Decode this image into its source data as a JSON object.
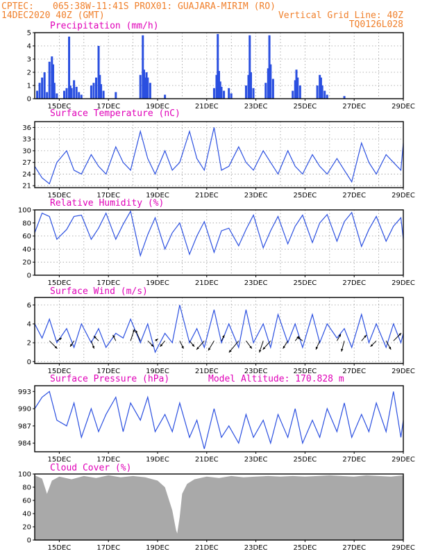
{
  "header": {
    "line1_left": "CPTEC:",
    "line1_center": "065:38W-11:41S   PROX01: GUAJARA-MIRIM (RO)",
    "line2_left": "14DEC2020 40Z (GMT)",
    "line2_right": "Vertical Grid Line: 40Z",
    "line3_right": "TQ0126L028"
  },
  "x_axis_labels": [
    "15DEC",
    "17DEC",
    "19DEC",
    "21DEC",
    "23DEC",
    "25DEC",
    "27DEC",
    "29DEC"
  ],
  "colors": {
    "series": "#2a4fe0",
    "bars": "#2a4fe0",
    "cloud": "#a9a9a9",
    "title": "#e000b8",
    "header": "#f07f2a"
  },
  "chart_data": [
    {
      "id": "precipitation",
      "type": "bar",
      "title": "Precipitation (mm/h)",
      "yticks": [
        0,
        1,
        2,
        3,
        4,
        5
      ],
      "ylim": [
        0,
        5
      ],
      "grid": true,
      "xlim": [
        14.0,
        29.0
      ],
      "x": [
        14.1,
        14.2,
        14.3,
        14.4,
        14.5,
        14.6,
        14.7,
        14.75,
        14.8,
        14.9,
        15.2,
        15.3,
        15.4,
        15.45,
        15.5,
        15.6,
        15.7,
        15.8,
        15.9,
        16.3,
        16.4,
        16.5,
        16.6,
        16.65,
        16.7,
        16.8,
        17.3,
        18.3,
        18.4,
        18.45,
        18.5,
        18.55,
        18.6,
        18.7,
        19.3,
        21.3,
        21.4,
        21.45,
        21.5,
        21.55,
        21.6,
        21.7,
        21.9,
        22.0,
        22.6,
        22.7,
        22.75,
        22.8,
        22.9,
        23.4,
        23.5,
        23.55,
        23.6,
        23.7,
        24.5,
        24.6,
        24.65,
        24.7,
        24.8,
        25.5,
        25.6,
        25.65,
        25.7,
        25.8,
        25.9,
        26.6
      ],
      "values": [
        0.6,
        1.2,
        1.6,
        2.0,
        0.5,
        2.8,
        3.2,
        2.6,
        1.2,
        0.4,
        0.6,
        0.8,
        4.7,
        1.0,
        0.8,
        1.4,
        0.9,
        0.5,
        0.3,
        1.0,
        1.2,
        1.6,
        4.0,
        1.8,
        1.1,
        0.6,
        0.5,
        1.8,
        4.8,
        2.2,
        1.6,
        2.0,
        1.6,
        1.2,
        0.3,
        0.8,
        1.8,
        4.9,
        2.1,
        1.3,
        0.9,
        0.6,
        0.8,
        0.4,
        1.0,
        1.8,
        4.8,
        2.0,
        0.8,
        1.2,
        2.3,
        4.8,
        2.6,
        1.5,
        0.6,
        1.4,
        2.2,
        1.6,
        1.0,
        1.0,
        1.8,
        1.6,
        1.0,
        0.6,
        0.3,
        0.2
      ]
    },
    {
      "id": "temperature",
      "type": "line",
      "title": "Surface Temperature (nC)",
      "yticks": [
        21,
        24,
        27,
        30,
        33,
        36
      ],
      "ylim": [
        20.5,
        37.5
      ],
      "grid": true,
      "xlim": [
        14.0,
        29.0
      ],
      "x": [
        14.0,
        14.3,
        14.6,
        14.9,
        15.3,
        15.6,
        15.9,
        16.3,
        16.6,
        16.9,
        17.3,
        17.6,
        17.9,
        18.3,
        18.6,
        18.9,
        19.3,
        19.6,
        19.9,
        20.3,
        20.6,
        20.9,
        21.3,
        21.6,
        21.9,
        22.3,
        22.6,
        22.9,
        23.3,
        23.6,
        23.9,
        24.3,
        24.6,
        24.9,
        25.3,
        25.6,
        25.9,
        26.3,
        26.6,
        26.9,
        27.3,
        27.6,
        27.9,
        28.3,
        28.6,
        28.9,
        29.0
      ],
      "values": [
        26,
        23,
        21.5,
        27,
        30,
        25,
        24,
        29,
        26,
        24,
        31,
        27,
        25,
        35,
        28,
        24,
        30,
        25,
        27,
        35,
        28,
        25,
        36,
        25,
        26,
        31,
        27,
        25,
        30,
        27,
        24,
        30,
        26,
        24,
        29,
        26,
        24,
        28,
        25,
        22,
        32,
        27,
        24,
        29,
        27,
        25,
        32
      ]
    },
    {
      "id": "humidity",
      "type": "line",
      "title": "Relative Humidity (%)",
      "yticks": [
        0,
        20,
        40,
        60,
        80,
        100
      ],
      "ylim": [
        0,
        100
      ],
      "grid": true,
      "xlim": [
        14.0,
        29.0
      ],
      "x": [
        14.0,
        14.3,
        14.6,
        14.9,
        15.3,
        15.6,
        15.9,
        16.3,
        16.6,
        16.9,
        17.3,
        17.6,
        17.9,
        18.3,
        18.6,
        18.9,
        19.3,
        19.6,
        19.9,
        20.3,
        20.6,
        20.9,
        21.3,
        21.6,
        21.9,
        22.3,
        22.6,
        22.9,
        23.3,
        23.6,
        23.9,
        24.3,
        24.6,
        24.9,
        25.3,
        25.6,
        25.9,
        26.3,
        26.6,
        26.9,
        27.3,
        27.6,
        27.9,
        28.3,
        28.6,
        28.9,
        29.0
      ],
      "values": [
        65,
        95,
        90,
        55,
        70,
        90,
        92,
        55,
        72,
        95,
        55,
        78,
        98,
        30,
        62,
        88,
        40,
        65,
        80,
        32,
        60,
        82,
        35,
        68,
        72,
        45,
        70,
        92,
        42,
        68,
        90,
        48,
        75,
        92,
        50,
        80,
        93,
        52,
        82,
        96,
        44,
        70,
        90,
        52,
        75,
        88,
        55
      ]
    },
    {
      "id": "wind",
      "type": "line",
      "title": "Surface Wind (m/s)",
      "yticks": [
        0,
        2,
        4,
        6
      ],
      "ylim": [
        -0.2,
        6.8
      ],
      "grid": true,
      "xlim": [
        14.0,
        29.0
      ],
      "x": [
        14.0,
        14.3,
        14.6,
        14.9,
        15.3,
        15.6,
        15.9,
        16.3,
        16.6,
        16.9,
        17.3,
        17.6,
        17.9,
        18.3,
        18.6,
        18.9,
        19.3,
        19.6,
        19.9,
        20.3,
        20.6,
        20.9,
        21.3,
        21.6,
        21.9,
        22.3,
        22.6,
        22.9,
        23.3,
        23.6,
        23.9,
        24.3,
        24.6,
        24.9,
        25.3,
        25.6,
        25.9,
        26.3,
        26.6,
        26.9,
        27.3,
        27.6,
        27.9,
        28.3,
        28.6,
        28.9,
        29.0
      ],
      "values": [
        4,
        2.5,
        4.5,
        2,
        3.5,
        1.5,
        4,
        2,
        3.5,
        1.5,
        3,
        2.5,
        4.5,
        2,
        4,
        1,
        3,
        2,
        6,
        2,
        3.5,
        1.5,
        5.5,
        2,
        4,
        1.5,
        5.5,
        2,
        4,
        1.5,
        5,
        2,
        4,
        1.5,
        5,
        2,
        4,
        2.5,
        3.5,
        1.5,
        5,
        2,
        4,
        1.5,
        4,
        2,
        3
      ],
      "vectors": [
        {
          "x": 14.6,
          "u": 0.8,
          "v": -0.8
        },
        {
          "x": 14.9,
          "u": 0.5,
          "v": 0.3
        },
        {
          "x": 15.6,
          "u": -0.4,
          "v": -0.6
        },
        {
          "x": 16.3,
          "u": 0.3,
          "v": -0.8
        },
        {
          "x": 16.6,
          "u": -0.5,
          "v": 0.5
        },
        {
          "x": 17.3,
          "u": -0.3,
          "v": 0.6
        },
        {
          "x": 17.9,
          "u": 0.4,
          "v": 1.2
        },
        {
          "x": 18.3,
          "u": -0.5,
          "v": 1.1
        },
        {
          "x": 18.6,
          "u": 0.6,
          "v": -0.6
        },
        {
          "x": 18.9,
          "u": 0.3,
          "v": 0.2
        },
        {
          "x": 19.3,
          "u": -0.5,
          "v": -0.6
        },
        {
          "x": 19.9,
          "u": 0.4,
          "v": -0.8
        },
        {
          "x": 20.3,
          "u": 0.5,
          "v": -0.6
        },
        {
          "x": 20.9,
          "u": -0.8,
          "v": -0.9
        },
        {
          "x": 21.3,
          "u": -0.6,
          "v": -1.0
        },
        {
          "x": 21.6,
          "u": 0.3,
          "v": 0.6
        },
        {
          "x": 22.3,
          "u": -1.0,
          "v": -1.2
        },
        {
          "x": 22.6,
          "u": 0.6,
          "v": -0.8
        },
        {
          "x": 23.3,
          "u": -0.4,
          "v": -1.2
        },
        {
          "x": 23.6,
          "u": -0.8,
          "v": -0.9
        },
        {
          "x": 24.3,
          "u": -0.5,
          "v": -0.8
        },
        {
          "x": 24.6,
          "u": 0.4,
          "v": 0.5
        },
        {
          "x": 24.9,
          "u": -0.5,
          "v": 0.4
        },
        {
          "x": 25.6,
          "u": -0.4,
          "v": -0.9
        },
        {
          "x": 26.3,
          "u": 0.4,
          "v": 0.7
        },
        {
          "x": 26.6,
          "u": -0.3,
          "v": -1.1
        },
        {
          "x": 27.3,
          "u": 0.5,
          "v": 0.6
        },
        {
          "x": 27.9,
          "u": -0.6,
          "v": -0.6
        },
        {
          "x": 28.3,
          "u": 0.5,
          "v": -0.9
        },
        {
          "x": 28.6,
          "u": 0.8,
          "v": 0.8
        }
      ]
    },
    {
      "id": "pressure",
      "type": "line",
      "title": "Surface Pressure (hPa)",
      "annotation": "Model Altitude: 170.828 m",
      "yticks": [
        984,
        987,
        990,
        993
      ],
      "ylim": [
        982.5,
        994
      ],
      "grid": false,
      "xlim": [
        14.0,
        29.0
      ],
      "x": [
        14.0,
        14.3,
        14.6,
        14.9,
        15.3,
        15.6,
        15.9,
        16.3,
        16.6,
        16.9,
        17.3,
        17.6,
        17.9,
        18.3,
        18.6,
        18.9,
        19.3,
        19.6,
        19.9,
        20.3,
        20.6,
        20.9,
        21.3,
        21.6,
        21.9,
        22.3,
        22.6,
        22.9,
        23.3,
        23.6,
        23.9,
        24.3,
        24.6,
        24.9,
        25.3,
        25.6,
        25.9,
        26.3,
        26.6,
        26.9,
        27.3,
        27.6,
        27.9,
        28.3,
        28.6,
        28.9,
        29.0
      ],
      "values": [
        990,
        992,
        993,
        988,
        987,
        991,
        985,
        990,
        986,
        989,
        992,
        986,
        991,
        988,
        992,
        986,
        989,
        986,
        991,
        985,
        988,
        983,
        990,
        985,
        987,
        984,
        989,
        985,
        988,
        984,
        989,
        985,
        990,
        984,
        988,
        985,
        990,
        986,
        991,
        985,
        989,
        986,
        991,
        986,
        993,
        985,
        988
      ]
    },
    {
      "id": "cloud",
      "type": "area",
      "title": "Cloud Cover (%)",
      "yticks": [
        0,
        20,
        40,
        60,
        80,
        100
      ],
      "ylim": [
        0,
        100
      ],
      "grid": false,
      "xlim": [
        14.0,
        29.0
      ],
      "x": [
        14.0,
        14.3,
        14.5,
        14.7,
        15.0,
        15.5,
        16.0,
        16.5,
        17.0,
        17.5,
        18.0,
        18.5,
        19.0,
        19.3,
        19.6,
        19.75,
        19.8,
        19.9,
        20.0,
        20.2,
        20.5,
        21.0,
        21.5,
        22.0,
        22.5,
        23.0,
        23.5,
        24.0,
        24.5,
        25.0,
        25.5,
        26.0,
        26.5,
        27.0,
        27.5,
        28.0,
        28.5,
        29.0
      ],
      "values": [
        98,
        93,
        70,
        90,
        96,
        92,
        97,
        94,
        98,
        95,
        97,
        95,
        90,
        80,
        45,
        15,
        10,
        35,
        70,
        85,
        92,
        96,
        94,
        97,
        95,
        96,
        97,
        96,
        97,
        96,
        97,
        98,
        97,
        96,
        98,
        97,
        96,
        98
      ]
    }
  ]
}
